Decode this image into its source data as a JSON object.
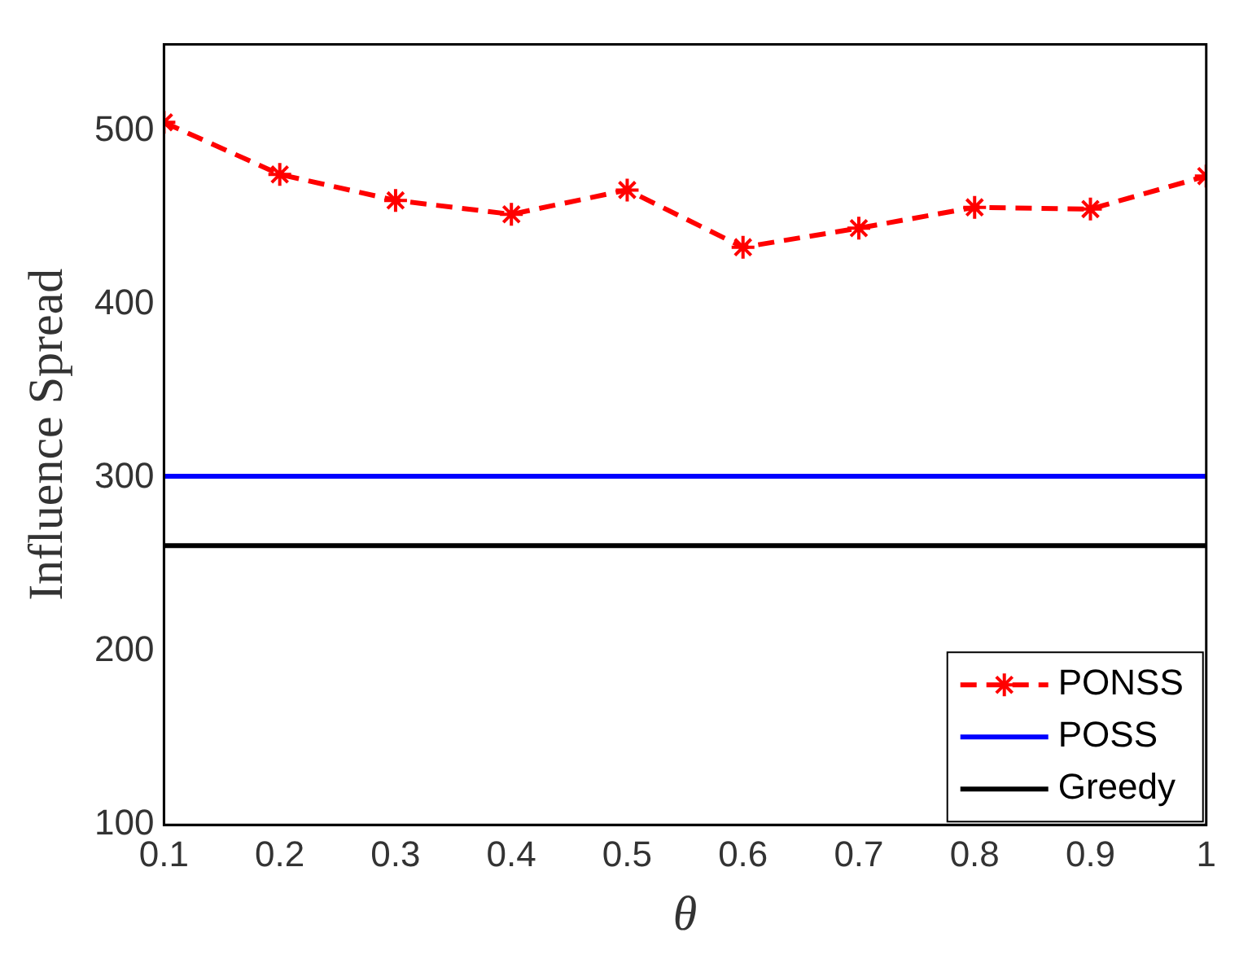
{
  "chart_data": {
    "type": "line",
    "xlabel": "θ",
    "ylabel": "Influence Spread",
    "x": [
      0.1,
      0.2,
      0.3,
      0.4,
      0.5,
      0.6,
      0.7,
      0.8,
      0.9,
      1
    ],
    "series": [
      {
        "name": "PONSS",
        "color": "#ff0000",
        "marker": "cross",
        "line_style": "dashed",
        "values": [
          505,
          475,
          460,
          452,
          466,
          433,
          444,
          456,
          455,
          474
        ]
      },
      {
        "name": "POSS",
        "color": "#0000ff",
        "marker": "none",
        "line_style": "solid",
        "values": [
          301,
          301,
          301,
          301,
          301,
          301,
          301,
          301,
          301,
          301
        ]
      },
      {
        "name": "Greedy",
        "color": "#000000",
        "marker": "none",
        "line_style": "solid",
        "values": [
          261,
          261,
          261,
          261,
          261,
          261,
          261,
          261,
          261,
          261
        ]
      }
    ],
    "xlim": [
      0.1,
      1
    ],
    "xticks": [
      0.1,
      0.2,
      0.3,
      0.4,
      0.5,
      0.6,
      0.7,
      0.8,
      0.9,
      1
    ],
    "ylim": [
      100,
      550
    ],
    "yticks": [
      100,
      200,
      300,
      400,
      500
    ],
    "grid": false,
    "legend": "bottom right"
  }
}
